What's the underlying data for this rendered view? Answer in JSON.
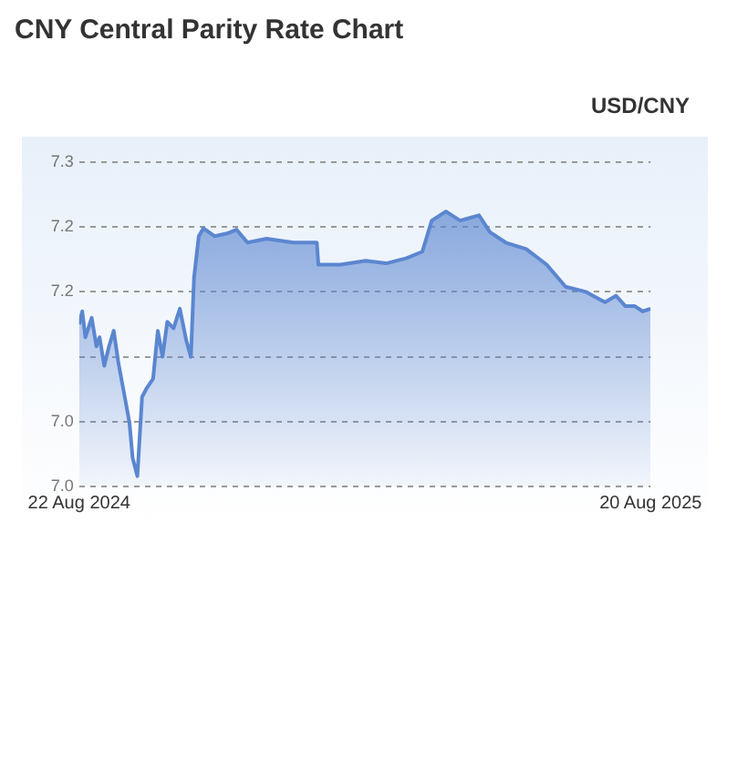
{
  "chart_data": {
    "type": "area",
    "title": "CNY Central Parity Rate Chart",
    "subtitle": "USD/CNY",
    "x": [
      "2024-08-22",
      "2024-08-24",
      "2024-08-26",
      "2024-08-30",
      "2024-09-02",
      "2024-09-04",
      "2024-09-07",
      "2024-09-10",
      "2024-09-13",
      "2024-09-16",
      "2024-09-20",
      "2024-09-23",
      "2024-09-25",
      "2024-09-28",
      "2024-10-01",
      "2024-10-04",
      "2024-10-08",
      "2024-10-11",
      "2024-10-14",
      "2024-10-17",
      "2024-10-21",
      "2024-10-25",
      "2024-10-29",
      "2024-11-01",
      "2024-11-03",
      "2024-11-06",
      "2024-11-09",
      "2024-11-16",
      "2024-11-24",
      "2024-11-30",
      "2024-12-07",
      "2024-12-19",
      "2025-01-05",
      "2025-01-20",
      "2025-01-21",
      "2025-02-04",
      "2025-02-20",
      "2025-03-05",
      "2025-03-18",
      "2025-03-28",
      "2025-04-03",
      "2025-04-12",
      "2025-04-21",
      "2025-05-03",
      "2025-05-10",
      "2025-05-20",
      "2025-06-02",
      "2025-06-15",
      "2025-06-27",
      "2025-07-10",
      "2025-07-22",
      "2025-07-29",
      "2025-08-04",
      "2025-08-10",
      "2025-08-15",
      "2025-08-20"
    ],
    "series": [
      {
        "color": "#5b86d0",
        "values": [
          7.125,
          7.135,
          7.115,
          7.13,
          7.108,
          7.115,
          7.093,
          7.108,
          7.12,
          7.095,
          7.069,
          7.049,
          7.022,
          7.008,
          7.069,
          7.076,
          7.083,
          7.12,
          7.1,
          7.127,
          7.122,
          7.137,
          7.113,
          7.1,
          7.161,
          7.193,
          7.199,
          7.193,
          7.195,
          7.198,
          7.188,
          7.191,
          7.188,
          7.188,
          7.171,
          7.171,
          7.174,
          7.172,
          7.176,
          7.181,
          7.205,
          7.212,
          7.205,
          7.209,
          7.196,
          7.188,
          7.183,
          7.171,
          7.154,
          7.15,
          7.142,
          7.147,
          7.139,
          7.139,
          7.135,
          7.137
        ]
      }
    ],
    "xlim": [
      "2024-08-22",
      "2025-08-20"
    ],
    "xticks": [
      {
        "value": "2024-08-22",
        "label": "22 Aug 2024"
      },
      {
        "value": "2025-08-20",
        "label": "20 Aug 2025"
      }
    ],
    "ylim": [
      7.0,
      7.25
    ],
    "yticks": [
      {
        "value": 7.0,
        "label": "7.0"
      },
      {
        "value": 7.05,
        "label": "7.0"
      },
      {
        "value": 7.1,
        "label": null
      },
      {
        "value": 7.15,
        "label": "7.2"
      },
      {
        "value": 7.2,
        "label": "7.2"
      },
      {
        "value": 7.25,
        "label": "7.3"
      }
    ],
    "grid": "y",
    "legend": false,
    "line_style": "solid",
    "marker": "none"
  }
}
